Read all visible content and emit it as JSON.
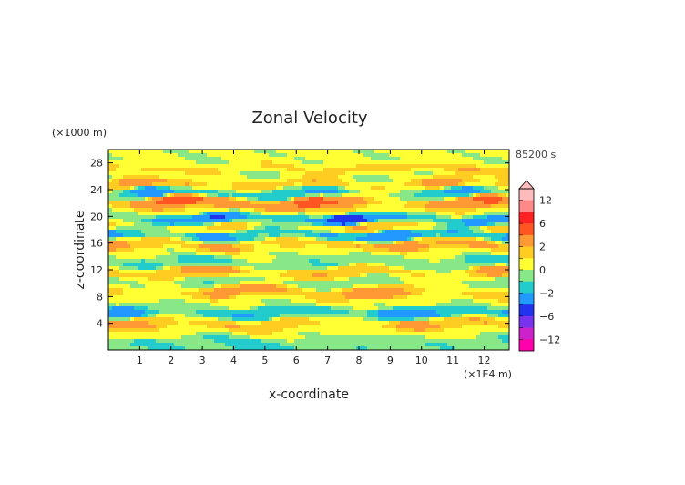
{
  "chart_data": {
    "type": "heatmap",
    "title": "Zonal Velocity",
    "xlabel": "x-coordinate",
    "ylabel": "z-coordinate",
    "x_unit": "(×1E4 m)",
    "y_unit": "(×1000 m)",
    "time_label": "85200 s",
    "xlim": [
      0,
      12.8
    ],
    "ylim": [
      0,
      30
    ],
    "x_ticks": [
      "1",
      "2",
      "3",
      "4",
      "5",
      "6",
      "7",
      "8",
      "9",
      "10",
      "11",
      "12"
    ],
    "y_ticks": [
      "4",
      "8",
      "12",
      "16",
      "20",
      "24",
      "28"
    ],
    "colorbar": {
      "labels": [
        "12",
        "6",
        "2",
        "0",
        "−2",
        "−6",
        "−12"
      ],
      "label_values": [
        12,
        6,
        2,
        0,
        -2,
        -6,
        -12
      ],
      "colors": [
        "#ff00aa",
        "#cc22cc",
        "#7733ee",
        "#2233ee",
        "#2299ff",
        "#22cccc",
        "#88e888",
        "#ffff33",
        "#ffcc22",
        "#ff9933",
        "#ff5522",
        "#ff2222",
        "#ff8888",
        "#ffbbbb"
      ],
      "bounds": [
        -16,
        -12,
        -9,
        -6,
        -4,
        -2,
        -1,
        0,
        1,
        2,
        4,
        6,
        9,
        12,
        16
      ]
    },
    "bands": [
      {
        "z": 1.2,
        "v": -1.2,
        "amp": 0.5
      },
      {
        "z": 2.6,
        "v": 0.6,
        "amp": 0.5
      },
      {
        "z": 4.0,
        "v": 2.4,
        "amp": 0.5
      },
      {
        "z": 5.5,
        "v": -2.5,
        "amp": 0.5
      },
      {
        "z": 7.2,
        "v": 0.3,
        "amp": 0.5
      },
      {
        "z": 8.6,
        "v": 2.6,
        "amp": 0.5
      },
      {
        "z": 10.2,
        "v": -0.7,
        "amp": 0.6
      },
      {
        "z": 11.6,
        "v": 2.6,
        "amp": 0.5
      },
      {
        "z": 13.0,
        "v": -1.5,
        "amp": 0.6
      },
      {
        "z": 14.5,
        "v": 0.4,
        "amp": 0.5
      },
      {
        "z": 15.8,
        "v": 3.2,
        "amp": 0.55
      },
      {
        "z": 17.2,
        "v": -3.5,
        "amp": 0.55
      },
      {
        "z": 18.5,
        "v": 2.2,
        "amp": 0.5
      },
      {
        "z": 19.6,
        "v": -4.8,
        "amp": 0.5
      },
      {
        "z": 20.8,
        "v": 1.0,
        "amp": 0.5
      },
      {
        "z": 22.0,
        "v": 4.8,
        "amp": 0.5
      },
      {
        "z": 23.5,
        "v": -2.6,
        "amp": 0.55
      },
      {
        "z": 24.8,
        "v": 3.0,
        "amp": 0.55
      },
      {
        "z": 26.0,
        "v": -0.3,
        "amp": 0.5
      },
      {
        "z": 27.0,
        "v": 2.2,
        "amp": 0.55
      },
      {
        "z": 28.4,
        "v": 0.2,
        "amp": 0.5
      },
      {
        "z": 29.4,
        "v": 0.4,
        "amp": 0.4
      }
    ]
  }
}
